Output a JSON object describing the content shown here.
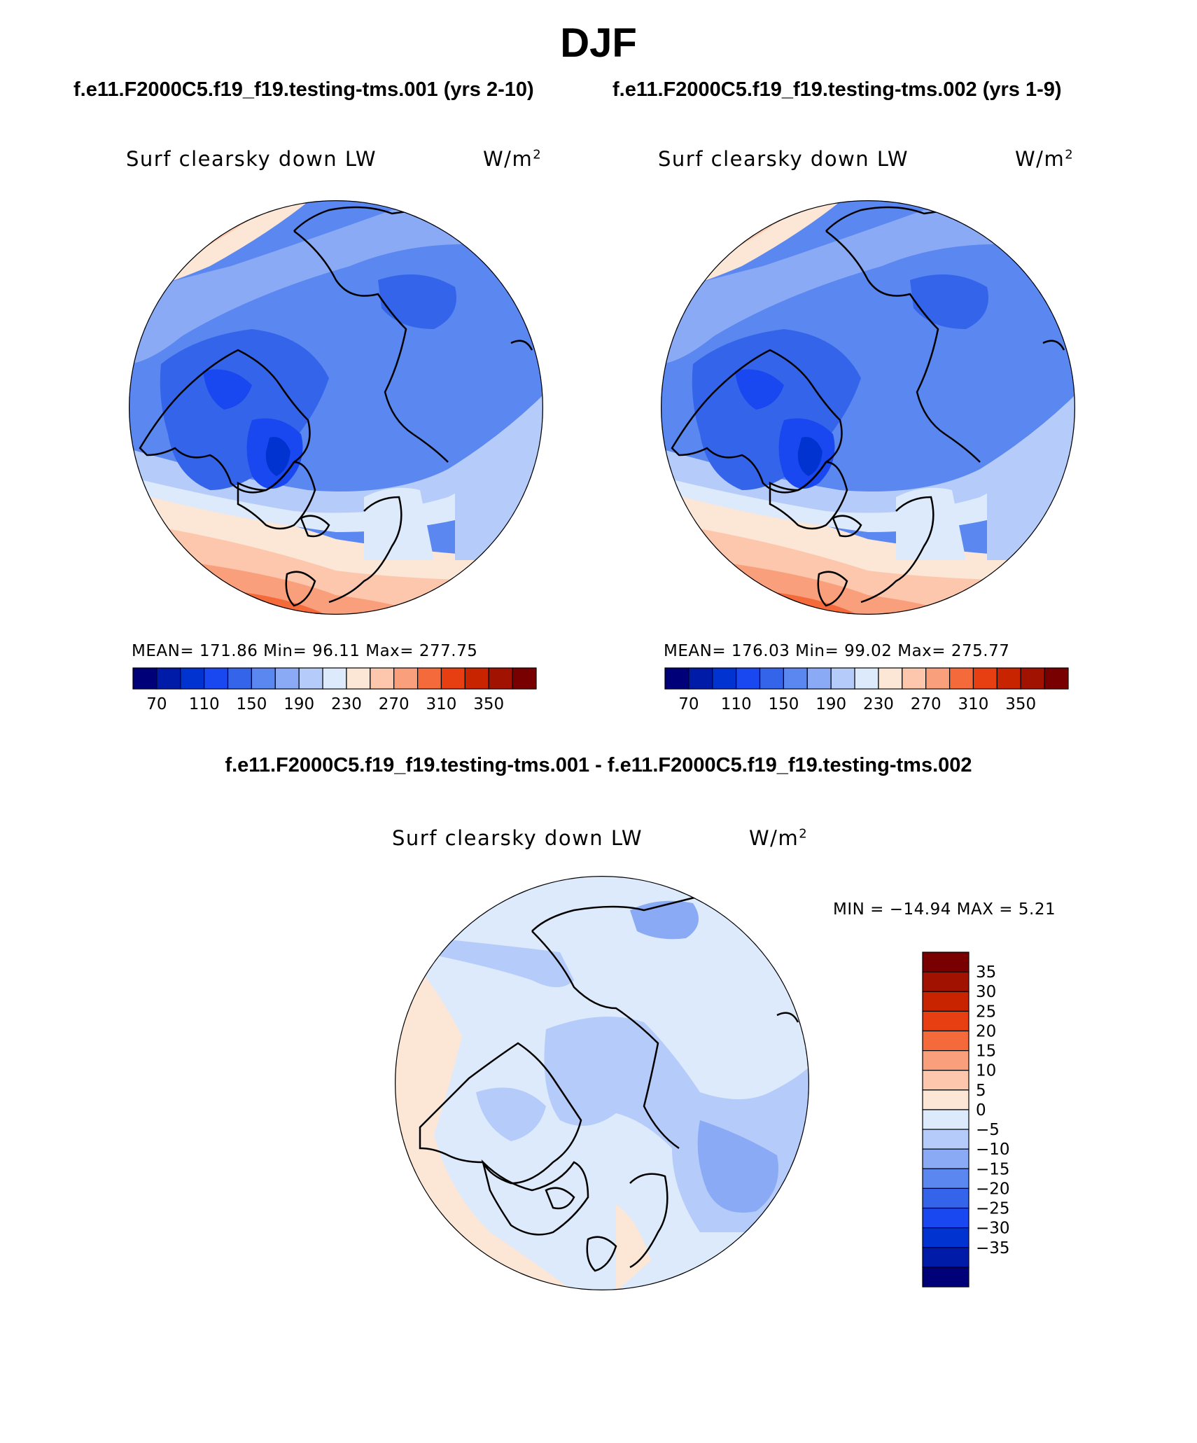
{
  "title": "DJF",
  "cases": {
    "case1": "f.e11.F2000C5.f19_f19.testing-tms.001 (yrs 2-10)",
    "case2": "f.e11.F2000C5.f19_f19.testing-tms.002 (yrs 1-9)"
  },
  "diff_title": "f.e11.F2000C5.f19_f19.testing-tms.001 - f.e11.F2000C5.f19_f19.testing-tms.002",
  "panels": [
    {
      "variable": "Surf clearsky down LW",
      "units_base": "W/m",
      "units_sup": "2",
      "stats": "MEAN= 171.86   Min=  96.11   Max= 277.75"
    },
    {
      "variable": "Surf clearsky down LW",
      "units_base": "W/m",
      "units_sup": "2",
      "stats": "MEAN= 176.03   Min=  99.02   Max= 275.77"
    },
    {
      "variable": "Surf clearsky down LW",
      "units_base": "W/m",
      "units_sup": "2",
      "stats": "MIN = −14.94 MAX =    5.21"
    }
  ],
  "colorbar_main": {
    "colors": [
      "#000078",
      "#001ba8",
      "#0033d0",
      "#1a48f0",
      "#3464ea",
      "#5a87f0",
      "#8aaaf5",
      "#b5cbfa",
      "#ddeafc",
      "#fce6d5",
      "#fcc7ad",
      "#f99f7b",
      "#f46a3b",
      "#e83f12",
      "#c92400",
      "#a11200",
      "#780000"
    ],
    "labels": [
      "70",
      "110",
      "150",
      "190",
      "230",
      "270",
      "310",
      "350"
    ]
  },
  "colorbar_diff": {
    "colors": [
      "#000078",
      "#001ba8",
      "#0033d0",
      "#1a48f0",
      "#3464ea",
      "#5a87f0",
      "#8aaaf5",
      "#b5cbfa",
      "#ddeafc",
      "#fce6d5",
      "#fcc7ad",
      "#f99f7b",
      "#f46a3b",
      "#e83f12",
      "#c92400",
      "#a11200",
      "#780000"
    ],
    "labels": [
      "35",
      "30",
      "25",
      "20",
      "15",
      "10",
      "5",
      "0",
      "−5",
      "−10",
      "−15",
      "−20",
      "−25",
      "−30",
      "−35"
    ]
  }
}
